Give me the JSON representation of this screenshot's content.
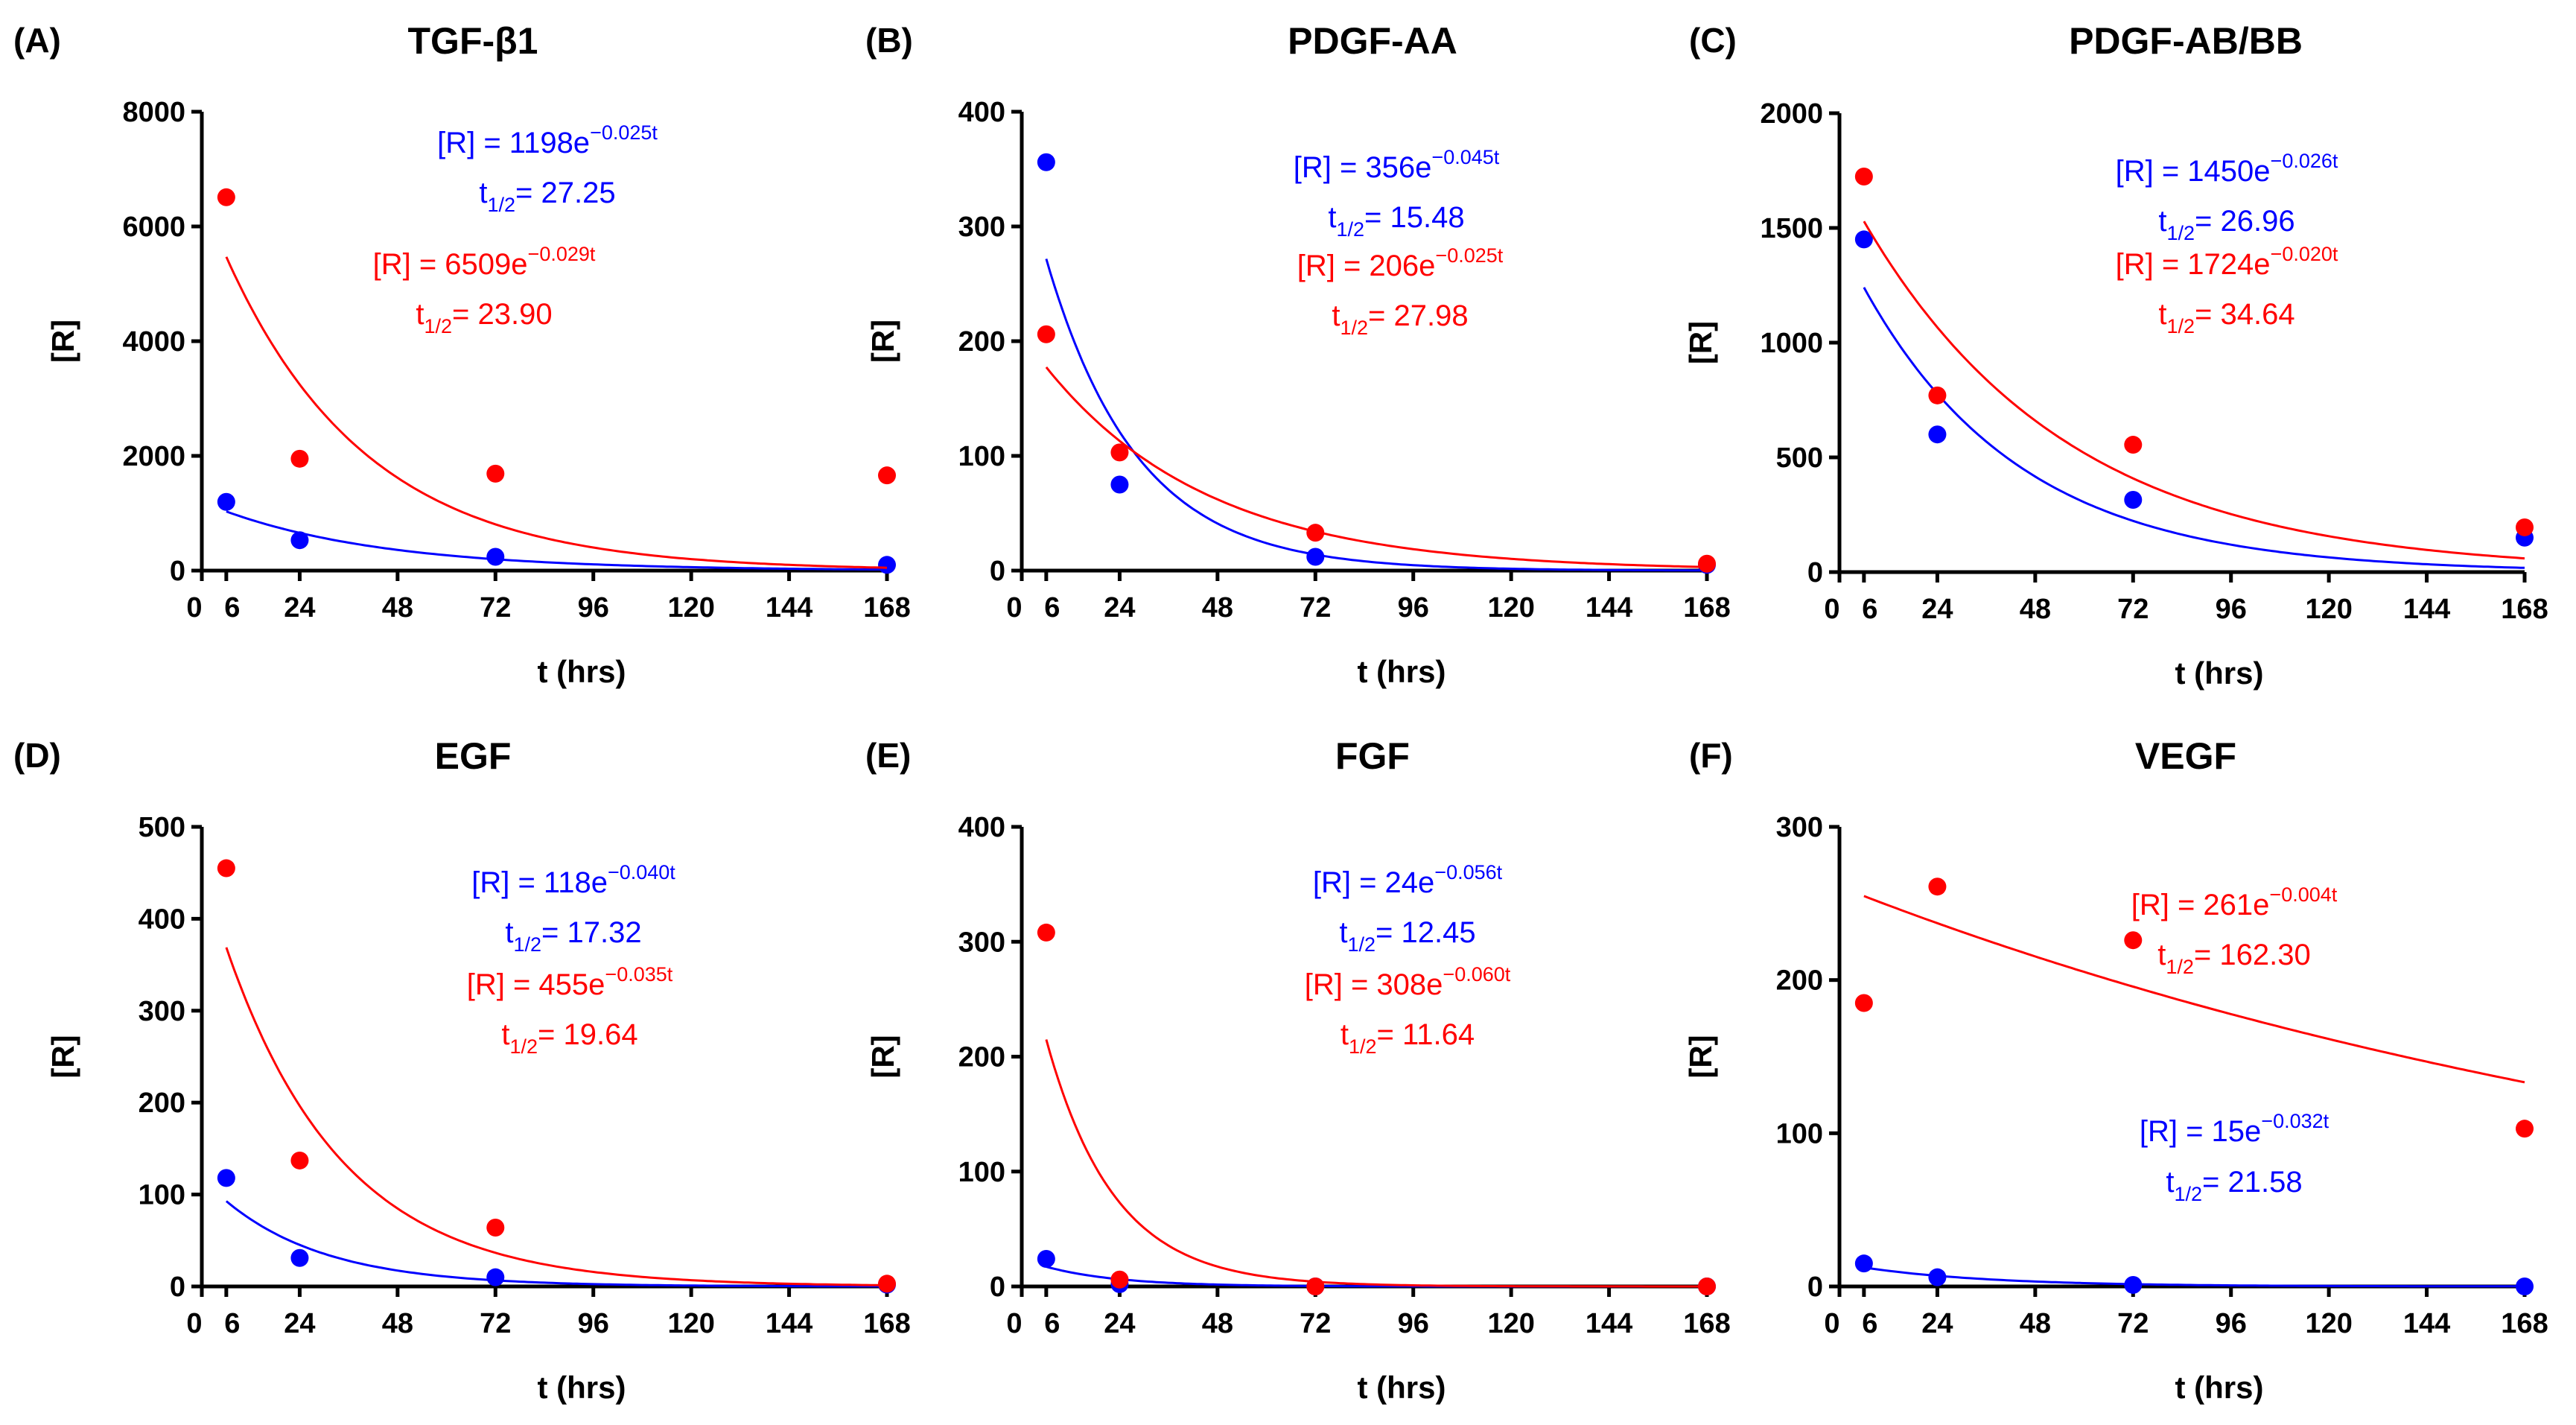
{
  "chart_data": [
    {
      "type": "scatter",
      "panel": "(A)",
      "title": "TGF-β1",
      "xlabel": "t (hrs)",
      "ylabel": "[R]",
      "xlim": [
        0,
        168
      ],
      "ylim": [
        0,
        8000
      ],
      "xticks": [
        "0",
        "6",
        "24",
        "48",
        "72",
        "96",
        "120",
        "144",
        "168"
      ],
      "yticks": [
        "0",
        "2000",
        "4000",
        "6000",
        "8000"
      ],
      "x": [
        6,
        24,
        72,
        168
      ],
      "series": [
        {
          "name": "blue",
          "color": "#0000ff",
          "values": [
            1198,
            530,
            240,
            100
          ],
          "fit": {
            "a": 1198,
            "k": 0.025
          },
          "eq_prefix": "[R] = 1198e",
          "eq_exp": "−0.025t",
          "half_label": "t",
          "half_sub": "1/2",
          "half_value": "= 27.25"
        },
        {
          "name": "red",
          "color": "#ff0000",
          "values": [
            6509,
            1950,
            1690,
            1660
          ],
          "fit": {
            "a": 6509,
            "k": 0.029
          },
          "eq_prefix": "[R] = 6509e",
          "eq_exp": "−0.029t",
          "half_label": "t",
          "half_sub": "1/2",
          "half_value": "= 23.90"
        }
      ]
    },
    {
      "type": "scatter",
      "panel": "(B)",
      "title": "PDGF-AA",
      "xlabel": "t (hrs)",
      "ylabel": "[R]",
      "xlim": [
        0,
        168
      ],
      "ylim": [
        0,
        400
      ],
      "xticks": [
        "0",
        "6",
        "24",
        "48",
        "72",
        "96",
        "120",
        "144",
        "168"
      ],
      "yticks": [
        "0",
        "100",
        "200",
        "300",
        "400"
      ],
      "x": [
        6,
        24,
        72,
        168
      ],
      "series": [
        {
          "name": "blue",
          "color": "#0000ff",
          "values": [
            356,
            75,
            12,
            5
          ],
          "fit": {
            "a": 356,
            "k": 0.045
          },
          "eq_prefix": "[R] = 356e",
          "eq_exp": "−0.045t",
          "half_label": "t",
          "half_sub": "1/2",
          "half_value": "= 15.48"
        },
        {
          "name": "red",
          "color": "#ff0000",
          "values": [
            206,
            103,
            33,
            6
          ],
          "fit": {
            "a": 206,
            "k": 0.025
          },
          "eq_prefix": "[R] = 206e",
          "eq_exp": "−0.025t",
          "half_label": "t",
          "half_sub": "1/2",
          "half_value": "= 27.98"
        }
      ]
    },
    {
      "type": "scatter",
      "panel": "(C)",
      "title": "PDGF-AB/BB",
      "xlabel": "t (hrs)",
      "ylabel": "[R]",
      "xlim": [
        0,
        168
      ],
      "ylim": [
        0,
        2000
      ],
      "xticks": [
        "0",
        "6",
        "24",
        "48",
        "72",
        "96",
        "120",
        "144",
        "168"
      ],
      "yticks": [
        "0",
        "500",
        "1000",
        "1500",
        "2000"
      ],
      "x": [
        6,
        24,
        72,
        168
      ],
      "series": [
        {
          "name": "blue",
          "color": "#0000ff",
          "values": [
            1450,
            600,
            315,
            150
          ],
          "fit": {
            "a": 1450,
            "k": 0.026
          },
          "eq_prefix": "[R] = 1450e",
          "eq_exp": "−0.026t",
          "half_label": "t",
          "half_sub": "1/2",
          "half_value": "= 26.96"
        },
        {
          "name": "red",
          "color": "#ff0000",
          "values": [
            1724,
            770,
            555,
            195
          ],
          "fit": {
            "a": 1724,
            "k": 0.02
          },
          "eq_prefix": "[R] = 1724e",
          "eq_exp": "−0.020t",
          "half_label": "t",
          "half_sub": "1/2",
          "half_value": "= 34.64"
        }
      ]
    },
    {
      "type": "scatter",
      "panel": "(D)",
      "title": "EGF",
      "xlabel": "t (hrs)",
      "ylabel": "[R]",
      "xlim": [
        0,
        168
      ],
      "ylim": [
        0,
        500
      ],
      "xticks": [
        "0",
        "6",
        "24",
        "48",
        "72",
        "96",
        "120",
        "144",
        "168"
      ],
      "yticks": [
        "0",
        "100",
        "200",
        "300",
        "400",
        "500"
      ],
      "x": [
        6,
        24,
        72,
        168
      ],
      "series": [
        {
          "name": "blue",
          "color": "#0000ff",
          "values": [
            118,
            31,
            10,
            2
          ],
          "fit": {
            "a": 118,
            "k": 0.04
          },
          "eq_prefix": "[R] = 118e",
          "eq_exp": "−0.040t",
          "half_label": "t",
          "half_sub": "1/2",
          "half_value": "= 17.32"
        },
        {
          "name": "red",
          "color": "#ff0000",
          "values": [
            455,
            137,
            64,
            3
          ],
          "fit": {
            "a": 455,
            "k": 0.035
          },
          "eq_prefix": "[R] = 455e",
          "eq_exp": "−0.035t",
          "half_label": "t",
          "half_sub": "1/2",
          "half_value": "= 19.64"
        }
      ]
    },
    {
      "type": "scatter",
      "panel": "(E)",
      "title": "FGF",
      "xlabel": "t (hrs)",
      "ylabel": "[R]",
      "xlim": [
        0,
        168
      ],
      "ylim": [
        0,
        400
      ],
      "xticks": [
        "0",
        "6",
        "24",
        "48",
        "72",
        "96",
        "120",
        "144",
        "168"
      ],
      "yticks": [
        "0",
        "100",
        "200",
        "300",
        "400"
      ],
      "x": [
        6,
        24,
        72,
        168
      ],
      "series": [
        {
          "name": "blue",
          "color": "#0000ff",
          "values": [
            24,
            2,
            0,
            0
          ],
          "fit": {
            "a": 24,
            "k": 0.056
          },
          "eq_prefix": "[R] = 24e",
          "eq_exp": "−0.056t",
          "half_label": "t",
          "half_sub": "1/2",
          "half_value": "= 12.45"
        },
        {
          "name": "red",
          "color": "#ff0000",
          "values": [
            308,
            6,
            0,
            0
          ],
          "fit": {
            "a": 308,
            "k": 0.06
          },
          "eq_prefix": "[R] = 308e",
          "eq_exp": "−0.060t",
          "half_label": "t",
          "half_sub": "1/2",
          "half_value": "= 11.64"
        }
      ]
    },
    {
      "type": "scatter",
      "panel": "(F)",
      "title": "VEGF",
      "xlabel": "t (hrs)",
      "ylabel": "[R]",
      "xlim": [
        0,
        168
      ],
      "ylim": [
        0,
        300
      ],
      "xticks": [
        "0",
        "6",
        "24",
        "48",
        "72",
        "96",
        "120",
        "144",
        "168"
      ],
      "yticks": [
        "0",
        "100",
        "200",
        "300"
      ],
      "x": [
        6,
        24,
        72,
        168
      ],
      "series": [
        {
          "name": "red",
          "color": "#ff0000",
          "values": [
            185,
            261,
            226,
            103
          ],
          "fit": {
            "a": 261,
            "k": 0.004
          },
          "eq_prefix": "[R] = 261e",
          "eq_exp": "−0.004t",
          "half_label": "t",
          "half_sub": "1/2",
          "half_value": "= 162.30"
        },
        {
          "name": "blue",
          "color": "#0000ff",
          "values": [
            15,
            6,
            1,
            0
          ],
          "fit": {
            "a": 15,
            "k": 0.032
          },
          "eq_prefix": "[R] = 15e",
          "eq_exp": "−0.032t",
          "half_label": "t",
          "half_sub": "1/2",
          "half_value": "= 21.58"
        }
      ]
    }
  ]
}
